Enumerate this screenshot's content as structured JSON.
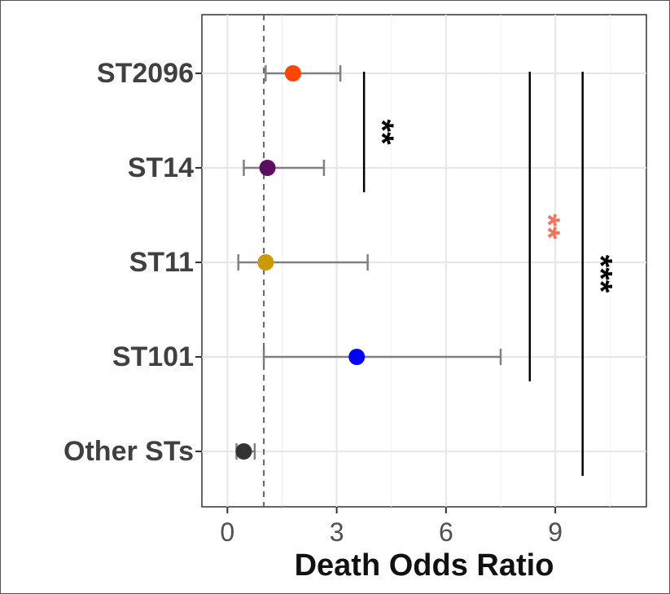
{
  "chart_data": {
    "type": "scatter",
    "title": "",
    "xlabel": "Death Odds Ratio",
    "ylabel": "",
    "xlim": [
      -0.7,
      11.5
    ],
    "x_ticks": [
      0,
      3,
      6,
      9
    ],
    "x_tick_labels": [
      "0",
      "3",
      "6",
      "9"
    ],
    "reference_line_x": 1,
    "grid": true,
    "legend": "none",
    "categories": [
      "ST2096",
      "ST14",
      "ST11",
      "ST101",
      "Other STs"
    ],
    "series": [
      {
        "values": [
          1.8,
          1.1,
          1.05,
          3.55,
          0.45
        ],
        "ci_low": [
          1.05,
          0.45,
          0.3,
          1.0,
          0.25
        ],
        "ci_high": [
          3.1,
          2.65,
          3.85,
          7.5,
          0.75
        ],
        "colors": [
          "#ff4500",
          "#5e0d63",
          "#cc9a06",
          "#0000ff",
          "#333333"
        ]
      }
    ],
    "annotations": [
      {
        "text": "**",
        "from": "ST2096",
        "to": "ST14",
        "x": 3.75,
        "color": "#000000"
      },
      {
        "text": "**",
        "from": "ST2096",
        "to": "ST101",
        "x": 8.3,
        "color": "#f4735a"
      },
      {
        "text": "***",
        "from": "ST2096",
        "to": "Other STs",
        "x": 9.75,
        "color": "#000000"
      }
    ]
  }
}
